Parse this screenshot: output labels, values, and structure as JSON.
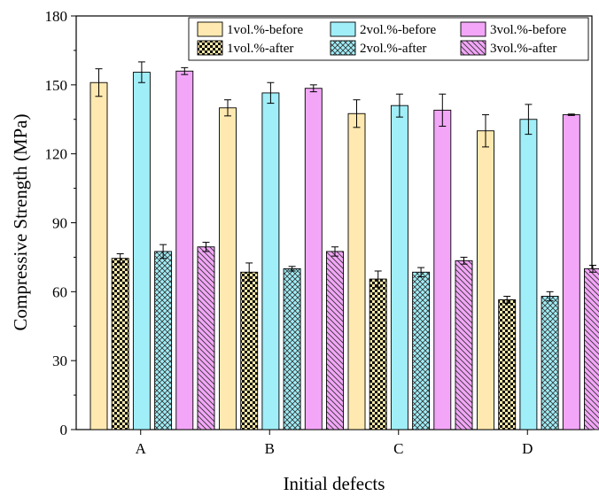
{
  "chart_data": {
    "type": "bar",
    "title": "",
    "xlabel": "Initial defects",
    "ylabel": "Compressive Strength (MPa)",
    "ylim": [
      0,
      180
    ],
    "yticks": [
      0,
      30,
      60,
      90,
      120,
      150,
      180
    ],
    "categories": [
      "A",
      "B",
      "C",
      "D"
    ],
    "grid": false,
    "legend": {
      "placement": "top",
      "columns": 3
    },
    "series": [
      {
        "name": "1vol.%-before",
        "values": [
          151,
          140,
          137.5,
          130
        ],
        "errors": [
          6,
          3.5,
          6,
          7
        ],
        "color": "#FFE9B0",
        "pattern": "solid"
      },
      {
        "name": "2vol.%-before",
        "values": [
          155.5,
          146.5,
          141,
          135
        ],
        "errors": [
          4.5,
          4.5,
          5,
          6.5
        ],
        "color": "#A0EEF8",
        "pattern": "solid"
      },
      {
        "name": "3vol.%-before",
        "values": [
          156,
          148.5,
          139,
          137
        ],
        "errors": [
          1.5,
          1.5,
          7,
          0.3
        ],
        "color": "#F3A6F8",
        "pattern": "solid"
      },
      {
        "name": "1vol.%-after",
        "values": [
          74.5,
          68.5,
          65.5,
          56.5
        ],
        "errors": [
          2,
          4,
          3.5,
          1.5
        ],
        "color": "#F7E7A6",
        "pattern": "checker"
      },
      {
        "name": "2vol.%-after",
        "values": [
          77.5,
          70,
          68.5,
          58
        ],
        "errors": [
          3,
          1,
          2,
          2
        ],
        "color": "#A0EEF8",
        "pattern": "crosshatch"
      },
      {
        "name": "3vol.%-after",
        "values": [
          79.5,
          77.5,
          73.5,
          70
        ],
        "errors": [
          2,
          2,
          1.5,
          1.5
        ],
        "color": "#F3A6F8",
        "pattern": "diagonal"
      }
    ]
  }
}
